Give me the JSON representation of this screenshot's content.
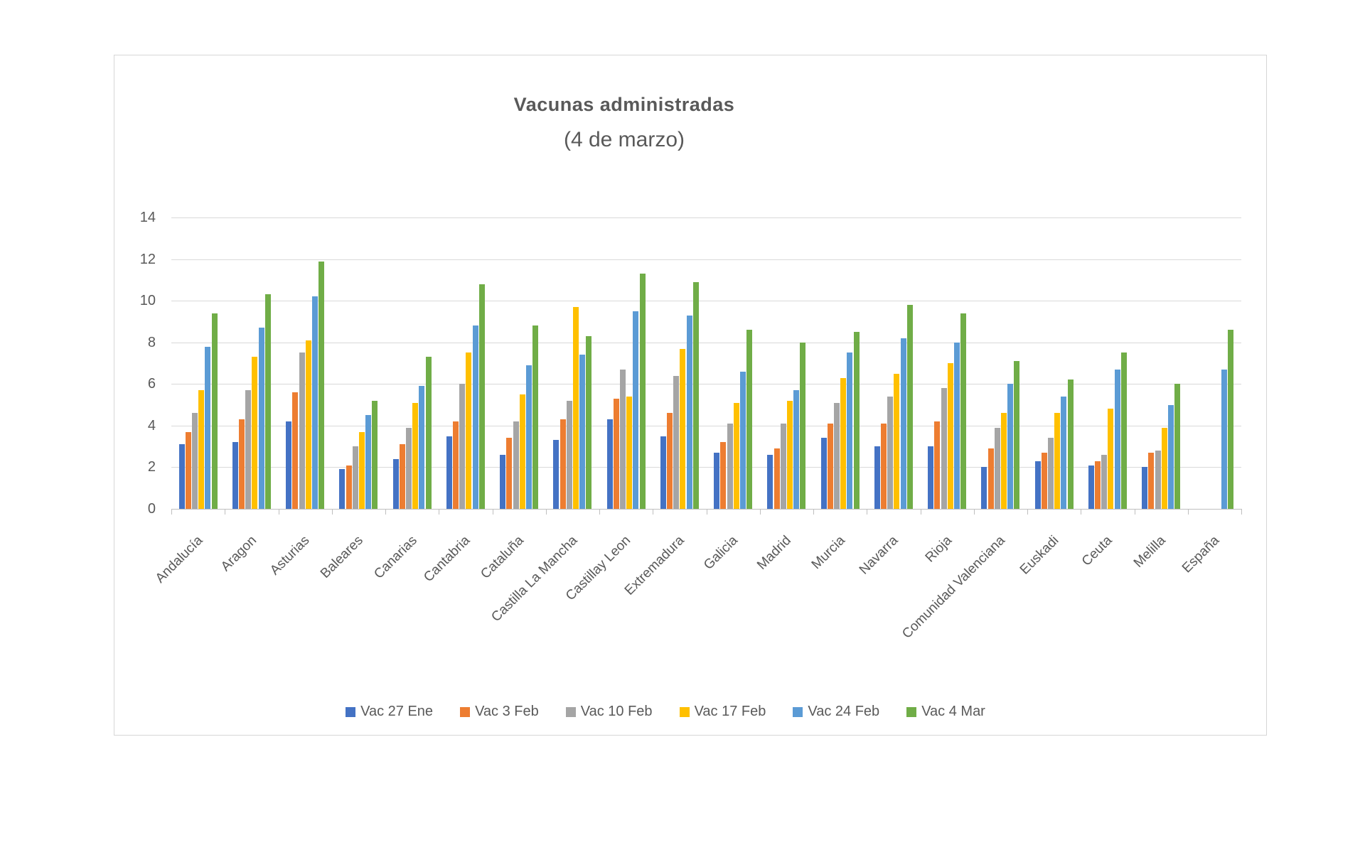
{
  "chart_data": {
    "type": "bar",
    "title": "Vacunas administradas",
    "subtitle": "(4 de marzo)",
    "categories": [
      "Andalucía",
      "Aragon",
      "Asturias",
      "Baleares",
      "Canarias",
      "Cantabria",
      "Cataluña",
      "Castilla La Mancha",
      "Castillay Leon",
      "Extremadura",
      "Galicia",
      "Madrid",
      "Murcia",
      "Navarra",
      "Rioja",
      "Comunidad Valenciana",
      "Euskadi",
      "Ceuta",
      "Melilla",
      "España"
    ],
    "series": [
      {
        "name": "Vac 27 Ene",
        "color": "#4472C4",
        "values": [
          3.1,
          3.2,
          4.2,
          1.9,
          2.4,
          3.5,
          2.6,
          3.3,
          4.3,
          3.5,
          2.7,
          2.6,
          3.4,
          3.0,
          3.0,
          2.0,
          2.3,
          2.1,
          2.0,
          0
        ]
      },
      {
        "name": "Vac 3 Feb",
        "color": "#ED7D31",
        "values": [
          3.7,
          4.3,
          5.6,
          2.1,
          3.1,
          4.2,
          3.4,
          4.3,
          5.3,
          4.6,
          3.2,
          2.9,
          4.1,
          4.1,
          4.2,
          2.9,
          2.7,
          2.3,
          2.7,
          0
        ]
      },
      {
        "name": "Vac 10 Feb",
        "color": "#A5A5A5",
        "values": [
          4.6,
          5.7,
          7.5,
          3.0,
          3.9,
          6.0,
          4.2,
          5.2,
          6.7,
          6.4,
          4.1,
          4.1,
          5.1,
          5.4,
          5.8,
          3.9,
          3.4,
          2.6,
          2.8,
          0
        ]
      },
      {
        "name": "Vac 17 Feb",
        "color": "#FFC000",
        "values": [
          5.7,
          7.3,
          8.1,
          3.7,
          5.1,
          7.5,
          5.5,
          9.7,
          5.4,
          7.7,
          5.1,
          5.2,
          6.3,
          6.5,
          7.0,
          4.6,
          4.6,
          4.8,
          3.9,
          0
        ]
      },
      {
        "name": "Vac 24 Feb",
        "color": "#5B9BD5",
        "values": [
          7.8,
          8.7,
          10.2,
          4.5,
          5.9,
          8.8,
          6.9,
          7.4,
          9.5,
          9.3,
          6.6,
          5.7,
          7.5,
          8.2,
          8.0,
          6.0,
          5.4,
          6.7,
          5.0,
          6.7
        ]
      },
      {
        "name": "Vac 4 Mar",
        "color": "#70AD47",
        "values": [
          9.4,
          10.3,
          11.9,
          5.2,
          7.3,
          10.8,
          8.8,
          8.3,
          11.3,
          10.9,
          8.6,
          8.0,
          8.5,
          9.8,
          9.4,
          7.1,
          6.2,
          7.5,
          6.0,
          8.6
        ]
      }
    ],
    "y_ticks": [
      0,
      2,
      4,
      6,
      8,
      10,
      12,
      14
    ],
    "ylim": [
      0,
      14
    ],
    "grid": true,
    "legend_position": "bottom",
    "text_color": "#595959",
    "grid_color": "#d9d9d9"
  }
}
